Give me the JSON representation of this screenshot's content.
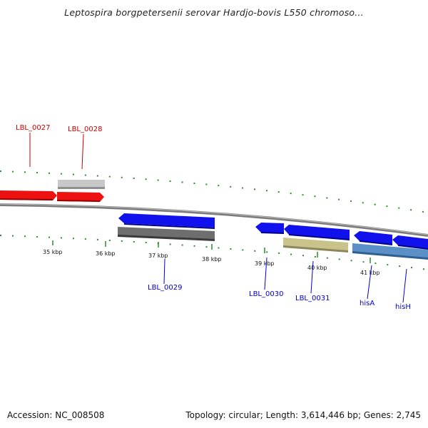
{
  "title": "Leptospira borgpetersenii serovar Hardjo-bovis L550 chromoso...",
  "footer": {
    "accession": "Accession: NC_008508",
    "summary": "Topology: circular; Length: 3,614,446 bp; Genes: 2,745"
  },
  "colors": {
    "backbone": "#8a8a8a",
    "tick": "#2e8b2e",
    "label_red": "#cc0000",
    "label_blue": "#0000cc",
    "gene_red": "#ee1111",
    "gene_blue": "#1111ee",
    "gene_light_gray": "#c8c8c8",
    "gene_dark_gray": "#6e6e6e",
    "gene_khaki": "#c9c28a",
    "gene_steel": "#5a8fc8"
  },
  "kbp_labels": [
    "35 kbp",
    "36 kbp",
    "37 kbp",
    "38 kbp",
    "39 kbp",
    "40 kbp",
    "41 kbp"
  ],
  "gene_labels": [
    {
      "text": "LBL_0027",
      "color": "red"
    },
    {
      "text": "LBL_0028",
      "color": "red"
    },
    {
      "text": "LBL_0029",
      "color": "blue"
    },
    {
      "text": "LBL_0030",
      "color": "blue"
    },
    {
      "text": "LBL_0031",
      "color": "blue"
    },
    {
      "text": "hisA",
      "color": "blue"
    },
    {
      "text": "hisH",
      "color": "blue"
    }
  ]
}
